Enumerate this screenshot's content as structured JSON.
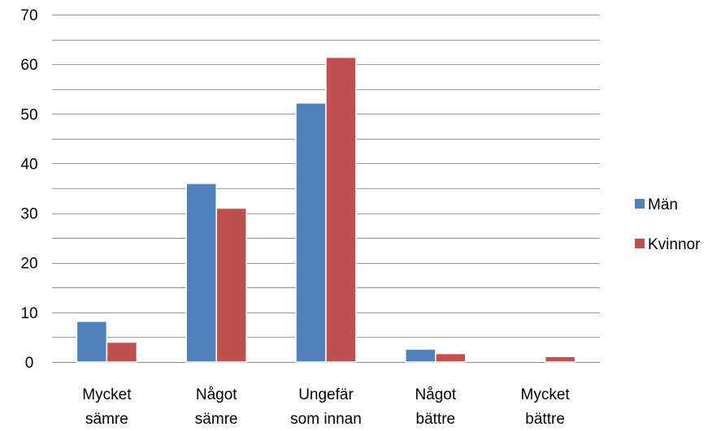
{
  "chart_data": {
    "type": "bar",
    "categories": [
      [
        "Mycket",
        "sämre"
      ],
      [
        "Något",
        "sämre"
      ],
      [
        "Ungefär",
        "som innan"
      ],
      [
        "Något",
        "bättre"
      ],
      [
        "Mycket",
        "bättre"
      ]
    ],
    "series": [
      {
        "name": "Män",
        "color": "#4F81BD",
        "values": [
          8.2,
          36,
          52.2,
          2.6,
          0
        ]
      },
      {
        "name": "Kvinnor",
        "color": "#C0504D",
        "values": [
          4,
          31,
          61.4,
          1.7,
          1.1
        ]
      }
    ],
    "ylim": [
      0,
      70
    ],
    "yticks": [
      "0",
      "10",
      "20",
      "30",
      "40",
      "50",
      "60",
      "70"
    ],
    "minor_gridlines_step": 5,
    "grid": true,
    "legend": "right"
  }
}
